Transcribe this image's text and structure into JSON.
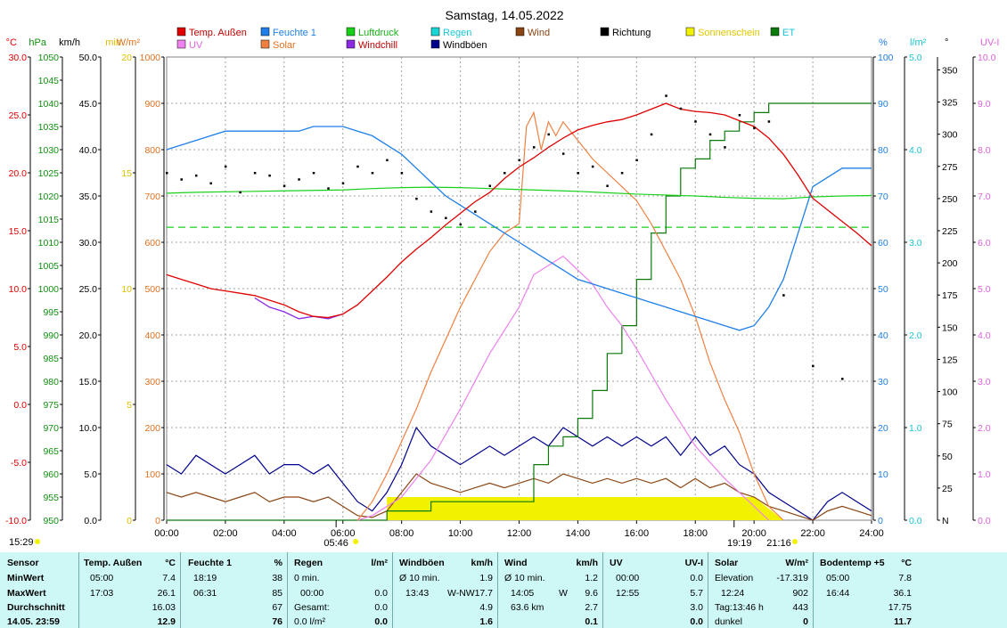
{
  "title": "Samstag, 14.05.2022",
  "legend": [
    {
      "label": "Temp. Außen",
      "color": "#e00000"
    },
    {
      "label": "Feuchte 1",
      "color": "#1f7fe8"
    },
    {
      "label": "Luftdruck",
      "color": "#19d019"
    },
    {
      "label": "Regen",
      "color": "#19d6d6"
    },
    {
      "label": "Wind",
      "color": "#8b4513"
    },
    {
      "label": "Richtung",
      "color": "#000000"
    },
    {
      "label": "Sonnenschein",
      "color": "#f2f200"
    },
    {
      "label": "ET",
      "color": "#0a7a0a"
    },
    {
      "label": "UV",
      "color": "#ee82ee"
    },
    {
      "label": "Solar",
      "color": "#f08040"
    },
    {
      "label": "Windchill",
      "color": "#8a2be2"
    },
    {
      "label": "Windböen",
      "color": "#00008b"
    }
  ],
  "axes": {
    "temp": {
      "unit": "°C",
      "color": "#e00000",
      "ticks": [
        "30.0",
        "25.0",
        "20.0",
        "15.0",
        "10.0",
        "5.0",
        "0.0",
        "-5.0",
        "-10.0"
      ]
    },
    "pressure": {
      "unit": "hPa",
      "color": "#009900",
      "ticks": [
        "1050",
        "1045",
        "1040",
        "1035",
        "1030",
        "1025",
        "1020",
        "1015",
        "1010",
        "1005",
        "1000",
        "995",
        "990",
        "985",
        "980",
        "975",
        "970",
        "965",
        "960",
        "955",
        "950"
      ]
    },
    "wind": {
      "unit": "km/h",
      "color": "#000000",
      "ticks": [
        "50.0",
        "45.0",
        "40.0",
        "35.0",
        "30.0",
        "25.0",
        "20.0",
        "15.0",
        "10.0",
        "5.0",
        "0.0"
      ]
    },
    "sunmin": {
      "unit": "min",
      "color": "#e0c000",
      "ticks": [
        "20",
        "15",
        "10",
        "5",
        "0"
      ]
    },
    "solar": {
      "unit": "W/m²",
      "color": "#e07020",
      "ticks": [
        "1000",
        "900",
        "800",
        "700",
        "600",
        "500",
        "400",
        "300",
        "200",
        "100",
        "0"
      ]
    },
    "humidity": {
      "unit": "%",
      "color": "#1f7fe8",
      "ticks": [
        "100",
        "90",
        "80",
        "70",
        "60",
        "50",
        "40",
        "30",
        "20",
        "10",
        "0"
      ]
    },
    "rain": {
      "unit": "l/m²",
      "color": "#19c6d6",
      "ticks": [
        "5.0",
        "4.0",
        "3.0",
        "2.0",
        "1.0",
        "0.0"
      ]
    },
    "direction": {
      "unit": "°",
      "color": "#000000",
      "ticks": [
        "350",
        "325",
        "300",
        "275",
        "250",
        "225",
        "200",
        "175",
        "150",
        "125",
        "100",
        "75",
        "50",
        "25",
        "N"
      ]
    },
    "uv": {
      "unit": "UV-I",
      "color": "#e060e0",
      "ticks": [
        "10.0",
        "9.0",
        "8.0",
        "7.0",
        "6.0",
        "5.0",
        "4.0",
        "3.0",
        "2.0",
        "1.0",
        "0.0"
      ]
    },
    "time_ticks": [
      "00:00",
      "02:00",
      "04:00",
      "06:00",
      "08:00",
      "10:00",
      "12:00",
      "14:00",
      "16:00",
      "18:00",
      "20:00",
      "22:00",
      "24:00"
    ]
  },
  "sun_markers": {
    "moonrise": "15:29",
    "sunrise": "05:46",
    "sunset": "19:19",
    "moonset": "21:16"
  },
  "chart_data": {
    "type": "line",
    "x_unit": "hour of day",
    "xlim": [
      0,
      24
    ],
    "series": [
      {
        "name": "Temp. Außen",
        "axis": "temp",
        "x": [
          0,
          0.5,
          1,
          1.5,
          2,
          2.5,
          3,
          3.5,
          4,
          4.5,
          5,
          5.5,
          6,
          6.5,
          7,
          7.5,
          8,
          8.5,
          9,
          9.5,
          10,
          10.5,
          11,
          11.5,
          12,
          12.5,
          13,
          13.5,
          14,
          14.5,
          15,
          15.5,
          16,
          16.5,
          17,
          17.5,
          18,
          18.5,
          19,
          19.5,
          20,
          20.5,
          21,
          21.5,
          22,
          22.5,
          23,
          23.5,
          24
        ],
        "values": [
          11.2,
          10.8,
          10.4,
          10.0,
          9.8,
          9.6,
          9.4,
          9.0,
          8.6,
          8.0,
          7.6,
          7.5,
          7.8,
          8.6,
          9.8,
          11.0,
          12.3,
          13.4,
          14.4,
          15.5,
          16.5,
          17.5,
          18.3,
          19.5,
          20.5,
          21.3,
          22.2,
          23.0,
          23.7,
          24.1,
          24.4,
          24.6,
          25.0,
          25.5,
          26.0,
          25.5,
          25.3,
          25.2,
          25.0,
          24.5,
          24.0,
          23.0,
          21.6,
          19.8,
          17.8,
          16.8,
          15.8,
          14.8,
          13.7
        ]
      },
      {
        "name": "Windchill",
        "axis": "temp",
        "x": [
          3,
          3.5,
          4,
          4.5,
          5,
          5.5,
          6
        ],
        "values": [
          9.2,
          8.4,
          8.0,
          7.4,
          7.6,
          7.4,
          7.8
        ]
      },
      {
        "name": "Feuchte 1",
        "axis": "humidity",
        "x": [
          0,
          0.5,
          1,
          1.5,
          2,
          2.5,
          3,
          3.5,
          4,
          4.5,
          5,
          5.5,
          6,
          6.5,
          7,
          7.5,
          8,
          8.5,
          9,
          9.5,
          10,
          10.5,
          11,
          11.5,
          12,
          12.5,
          13,
          13.5,
          14,
          14.5,
          15,
          15.5,
          16,
          16.5,
          17,
          17.5,
          18,
          18.5,
          19,
          19.5,
          20,
          20.5,
          21,
          21.5,
          22,
          22.5,
          23,
          23.5,
          24
        ],
        "values": [
          80,
          81,
          82,
          83,
          84,
          84,
          84,
          84,
          84,
          84,
          85,
          85,
          85,
          84,
          83,
          81,
          79,
          76,
          73,
          70,
          68,
          66,
          64,
          62,
          60,
          58,
          56,
          54,
          52,
          51,
          50,
          49,
          48,
          47,
          46,
          45,
          44,
          43,
          42,
          41,
          42,
          46,
          52,
          62,
          72,
          74,
          76,
          76,
          76
        ]
      },
      {
        "name": "Luftdruck",
        "axis": "pressure",
        "x": [
          0,
          1,
          2,
          3,
          4,
          5,
          6,
          7,
          8,
          9,
          10,
          11,
          12,
          13,
          14,
          15,
          16,
          17,
          18,
          19,
          20,
          21,
          22,
          23,
          24
        ],
        "values": [
          1020.6,
          1020.8,
          1020.9,
          1021.0,
          1021.1,
          1021.2,
          1021.3,
          1021.6,
          1021.8,
          1021.9,
          1021.8,
          1021.6,
          1021.4,
          1021.2,
          1021.0,
          1020.7,
          1020.4,
          1020.2,
          1020.0,
          1019.7,
          1019.5,
          1019.4,
          1019.8,
          1020.0,
          1020.1
        ]
      },
      {
        "name": "Solar",
        "axis": "solar",
        "x": [
          6.5,
          7,
          7.5,
          8,
          8.5,
          9,
          9.5,
          10,
          10.5,
          11,
          11.5,
          12,
          12.25,
          12.5,
          12.75,
          13,
          13.25,
          13.5,
          14,
          14.5,
          15,
          15.5,
          16,
          16.5,
          17,
          17.5,
          18,
          18.5,
          19,
          19.5,
          20,
          20.5,
          21
        ],
        "values": [
          0,
          40,
          100,
          170,
          240,
          320,
          390,
          460,
          520,
          580,
          620,
          640,
          850,
          880,
          800,
          860,
          830,
          860,
          820,
          780,
          750,
          720,
          690,
          640,
          580,
          520,
          440,
          340,
          260,
          190,
          100,
          30,
          0
        ]
      },
      {
        "name": "UV",
        "axis": "uv",
        "x": [
          6.5,
          7,
          8,
          9,
          10,
          11,
          12,
          12.5,
          13,
          13.5,
          14,
          14.5,
          15,
          15.5,
          16,
          17,
          18,
          19,
          20,
          20.5
        ],
        "values": [
          0,
          0.1,
          0.5,
          1.3,
          2.4,
          3.6,
          4.6,
          5.3,
          5.5,
          5.7,
          5.4,
          5.1,
          4.6,
          4.2,
          3.7,
          2.6,
          1.6,
          0.9,
          0.3,
          0
        ]
      },
      {
        "name": "ET",
        "axis": "rain",
        "x": [
          0,
          7,
          7.5,
          8.9,
          9,
          12,
          12.5,
          13,
          13.5,
          14,
          14.5,
          15,
          15.5,
          16,
          16.5,
          17,
          17.5,
          18,
          18.5,
          19,
          19.5,
          20,
          20.5,
          21,
          24
        ],
        "values": [
          0,
          0,
          0.1,
          0.1,
          0.2,
          0.2,
          0.6,
          0.8,
          0.9,
          1.1,
          1.4,
          1.8,
          2.1,
          2.6,
          3.1,
          3.5,
          3.8,
          3.9,
          4.1,
          4.2,
          4.3,
          4.4,
          4.5,
          4.5,
          4.5
        ]
      },
      {
        "name": "Windböen",
        "axis": "wind",
        "x": [
          0,
          0.5,
          1,
          1.5,
          2,
          2.5,
          3,
          3.5,
          4,
          4.5,
          5,
          5.5,
          6,
          6.5,
          7,
          7.5,
          8,
          8.5,
          9,
          9.5,
          10,
          10.5,
          11,
          11.5,
          12,
          12.5,
          13,
          13.5,
          14,
          14.5,
          15,
          15.5,
          16,
          16.5,
          17,
          17.5,
          18,
          18.5,
          19,
          19.5,
          20,
          20.5,
          21,
          21.5,
          22,
          22.5,
          23,
          23.5,
          24
        ],
        "values": [
          6,
          5,
          7,
          6,
          5,
          6,
          7,
          5,
          6,
          6,
          5,
          6,
          4,
          2,
          1,
          3,
          6,
          10,
          8,
          7,
          6,
          7,
          8,
          7,
          8,
          9,
          8,
          10,
          9,
          8,
          9,
          8,
          9,
          8,
          9,
          7,
          9,
          7,
          8,
          6,
          5,
          3,
          2,
          1,
          0,
          2,
          3,
          2,
          1
        ]
      },
      {
        "name": "Wind",
        "axis": "wind",
        "x": [
          0,
          0.5,
          1,
          1.5,
          2,
          2.5,
          3,
          3.5,
          4,
          4.5,
          5,
          5.5,
          6,
          6.5,
          7,
          7.5,
          8,
          8.5,
          9,
          9.5,
          10,
          10.5,
          11,
          11.5,
          12,
          12.5,
          13,
          13.5,
          14,
          14.5,
          15,
          15.5,
          16,
          16.5,
          17,
          17.5,
          18,
          18.5,
          19,
          19.5,
          20,
          20.5,
          21,
          21.5,
          22,
          22.5,
          23,
          23.5,
          24
        ],
        "values": [
          3,
          2.5,
          3,
          2.5,
          2,
          2.5,
          3,
          2,
          2.5,
          2.5,
          2,
          2.5,
          1.5,
          0.5,
          0.3,
          1,
          3,
          5,
          4,
          3.5,
          3,
          3.5,
          4,
          3.5,
          4,
          4.5,
          4,
          5,
          4.5,
          4,
          4.5,
          4,
          4.5,
          4,
          4.5,
          3.5,
          4.5,
          3.5,
          4,
          3,
          2.5,
          1.5,
          1,
          0.5,
          0,
          1,
          1.5,
          1,
          0.5
        ]
      },
      {
        "name": "Sonnenschein",
        "axis": "sunmin",
        "x": [
          7.5,
          8,
          9,
          10,
          11,
          12,
          13,
          14,
          15,
          16,
          17,
          18,
          19,
          20,
          20.5,
          21
        ],
        "values": [
          1,
          1,
          1,
          1,
          1,
          1,
          1,
          1,
          1,
          1,
          1,
          1,
          1,
          1,
          0.5,
          0
        ]
      },
      {
        "name": "Richtung",
        "axis": "direction",
        "type": "scatter",
        "x": [
          0,
          0.5,
          1,
          1.5,
          2,
          2.5,
          3,
          3.5,
          4,
          4.5,
          5,
          5.5,
          6,
          6.5,
          7,
          7.5,
          8,
          8.5,
          9,
          9.5,
          10,
          10.5,
          11,
          11.5,
          12,
          12.5,
          13,
          13.5,
          14,
          14.5,
          15,
          15.5,
          16,
          16.5,
          17,
          17.5,
          18,
          18.5,
          19,
          19.5,
          20,
          20.5,
          21,
          22,
          23
        ],
        "values": [
          270,
          265,
          268,
          262,
          275,
          255,
          270,
          268,
          260,
          265,
          270,
          258,
          262,
          275,
          270,
          280,
          270,
          250,
          240,
          235,
          230,
          240,
          260,
          270,
          280,
          290,
          300,
          285,
          270,
          275,
          260,
          270,
          280,
          300,
          330,
          320,
          310,
          300,
          290,
          315,
          305,
          310,
          175,
          120,
          110
        ]
      }
    ]
  },
  "summary": {
    "header": {
      "sensor": "Sensor",
      "temp": "Temp. Außen",
      "temp_unit": "°C",
      "hum": "Feuchte 1",
      "hum_unit": "%",
      "rain": "Regen",
      "rain_unit": "l/m²",
      "gust": "Windböen",
      "gust_unit": "km/h",
      "wind": "Wind",
      "wind_unit": "km/h",
      "uv": "UV",
      "uv_unit": "UV-I",
      "solar": "Solar",
      "solar_unit": "W/m²",
      "soil": "Bodentemp +5",
      "soil_unit": "°C"
    },
    "row_labels": [
      "MinWert",
      "MaxWert",
      "Durchschnitt",
      "14.05. 23:59"
    ],
    "temp": {
      "min_time": "05:00",
      "min": "7.4",
      "max_time": "17:03",
      "max": "26.1",
      "avg": "16.03",
      "current": "12.9"
    },
    "hum": {
      "min_time": "18:19",
      "min": "38",
      "max_time": "06:31",
      "max": "85",
      "avg": "67",
      "current": "76"
    },
    "rain": {
      "r1_label": "0 min.",
      "r2_label": "00:00",
      "r2_val": "0.0",
      "r3_label": "Gesamt:",
      "r3_val": "0.0",
      "r4_label": "0.0 l/m²",
      "current": "0.0"
    },
    "gust": {
      "r1_label": "Ø 10 min.",
      "r1_val": "1.9",
      "r2_time": "13:43",
      "r2_dir": "W-NW",
      "r2_val": "17.7",
      "r3_val": "4.9",
      "current": "1.6"
    },
    "wind": {
      "r1_label": "Ø 10 min.",
      "r1_val": "1.2",
      "r2_time": "14:05",
      "r2_dir": "W",
      "r2_val": "9.6",
      "r3_label": "63.6 km",
      "r3_val": "2.7",
      "current": "0.1"
    },
    "uv": {
      "r1_time": "00:00",
      "r1_val": "0.0",
      "r2_time": "12:55",
      "r2_val": "5.7",
      "r3_val": "3.0",
      "current": "0.0"
    },
    "solar": {
      "r1_label": "Elevation",
      "r1_val": "-17.319",
      "r2_time": "12:24",
      "r2_val": "902",
      "r3_label": "Tag:13:46 h",
      "r3_val": "443",
      "r4_label": "dunkel",
      "current": "0"
    },
    "soil": {
      "min_time": "05:00",
      "min": "7.8",
      "max_time": "16:44",
      "max": "36.1",
      "avg": "17.75",
      "current": "11.7"
    }
  }
}
